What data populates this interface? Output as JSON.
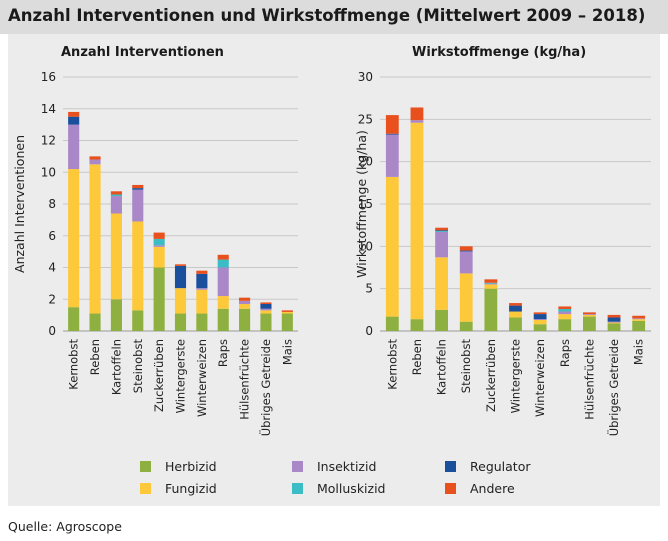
{
  "title": "Anzahl Interventionen und Wirkstoffmenge (Mittelwert 2009 – 2018)",
  "source": "Quelle: Agroscope",
  "colors": {
    "Herbizid": "#8db040",
    "Fungizid": "#fdc93a",
    "Insektizid": "#aa88c7",
    "Molluskizid": "#3cbcc4",
    "Regulator": "#1a4f9c",
    "Andere": "#e8501e"
  },
  "legend": {
    "items": [
      "Herbizid",
      "Insektizid",
      "Regulator",
      "Fungizid",
      "Molluskizid",
      "Andere"
    ]
  },
  "chart_data": [
    {
      "type": "bar",
      "stacked": true,
      "title": "Anzahl Interventionen",
      "xlabel": "",
      "ylabel": "Anzahl Interventionen",
      "ylim": [
        0,
        16
      ],
      "yticks": [
        0,
        2,
        4,
        6,
        8,
        10,
        12,
        14,
        16
      ],
      "grid": true,
      "categories": [
        "Kernobst",
        "Reben",
        "Kartoffeln",
        "Steinobst",
        "Zuckerrüben",
        "Wintergerste",
        "Winterweizen",
        "Raps",
        "Hülsenfrüchte",
        "Übriges Getreide",
        "Mais"
      ],
      "series": [
        {
          "name": "Herbizid",
          "values": [
            1.5,
            1.1,
            2.0,
            1.3,
            4.0,
            1.1,
            1.1,
            1.4,
            1.4,
            1.1,
            1.1
          ]
        },
        {
          "name": "Fungizid",
          "values": [
            8.7,
            9.4,
            5.4,
            5.6,
            1.3,
            1.6,
            1.5,
            0.8,
            0.3,
            0.2,
            0.1
          ]
        },
        {
          "name": "Insektizid",
          "values": [
            2.8,
            0.3,
            1.1,
            2.0,
            0.1,
            0.0,
            0.1,
            1.8,
            0.2,
            0.1,
            0.0
          ]
        },
        {
          "name": "Molluskizid",
          "values": [
            0.0,
            0.0,
            0.1,
            0.0,
            0.4,
            0.0,
            0.0,
            0.5,
            0.0,
            0.0,
            0.0
          ]
        },
        {
          "name": "Regulator",
          "values": [
            0.5,
            0.0,
            0.0,
            0.1,
            0.0,
            1.4,
            0.9,
            0.0,
            0.0,
            0.3,
            0.0
          ]
        },
        {
          "name": "Andere",
          "values": [
            0.3,
            0.2,
            0.2,
            0.2,
            0.4,
            0.1,
            0.2,
            0.3,
            0.2,
            0.1,
            0.1
          ]
        }
      ]
    },
    {
      "type": "bar",
      "stacked": true,
      "title": "Wirkstoffmenge (kg/ha)",
      "xlabel": "",
      "ylabel": "Wirkstoffmenge (kg/ha)",
      "ylim": [
        0,
        30
      ],
      "yticks": [
        0,
        5,
        10,
        15,
        20,
        25,
        30
      ],
      "grid": true,
      "categories": [
        "Kernobst",
        "Reben",
        "Kartoffeln",
        "Steinobst",
        "Zuckerrüben",
        "Wintergerste",
        "Winterweizen",
        "Raps",
        "Hülsenfrüchte",
        "Übriges Getreide",
        "Mais"
      ],
      "series": [
        {
          "name": "Herbizid",
          "values": [
            1.7,
            1.4,
            2.5,
            1.1,
            5.0,
            1.6,
            0.8,
            1.4,
            1.7,
            0.9,
            1.2
          ]
        },
        {
          "name": "Fungizid",
          "values": [
            16.5,
            23.2,
            6.2,
            5.7,
            0.5,
            0.7,
            0.5,
            0.6,
            0.2,
            0.1,
            0.2
          ]
        },
        {
          "name": "Insektizid",
          "values": [
            5.0,
            0.3,
            3.0,
            2.6,
            0.1,
            0.0,
            0.1,
            0.3,
            0.1,
            0.1,
            0.1
          ]
        },
        {
          "name": "Molluskizid",
          "values": [
            0.0,
            0.0,
            0.1,
            0.0,
            0.1,
            0.0,
            0.0,
            0.3,
            0.0,
            0.0,
            0.0
          ]
        },
        {
          "name": "Regulator",
          "values": [
            0.1,
            0.0,
            0.1,
            0.1,
            0.0,
            0.7,
            0.6,
            0.0,
            0.0,
            0.5,
            0.0
          ]
        },
        {
          "name": "Andere",
          "values": [
            2.2,
            1.5,
            0.3,
            0.5,
            0.4,
            0.3,
            0.2,
            0.3,
            0.2,
            0.3,
            0.3
          ]
        }
      ]
    }
  ]
}
